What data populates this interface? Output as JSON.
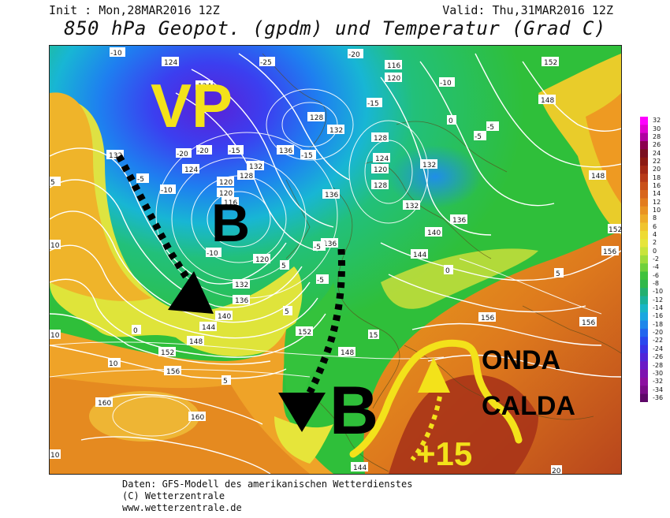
{
  "header": {
    "init": "Init : Mon,28MAR2016 12Z",
    "valid": "Valid: Thu,31MAR2016 12Z",
    "title": "850 hPa Geopot. (gpdm) und Temperatur (Grad C)"
  },
  "annotations": {
    "vortex": "VP",
    "low1": "B",
    "low2": "B",
    "warm_wave_line1": "ONDA",
    "warm_wave_line2": "CALDA",
    "temp_value": "+15"
  },
  "colors": {
    "annotation_yellow": "#f3e21a",
    "annotation_black": "#000000"
  },
  "colorbar": {
    "labels": [
      "32",
      "30",
      "28",
      "26",
      "24",
      "22",
      "20",
      "18",
      "16",
      "14",
      "12",
      "10",
      "8",
      "6",
      "4",
      "2",
      "0",
      "-2",
      "-4",
      "-6",
      "-8",
      "-10",
      "-12",
      "-14",
      "-16",
      "-18",
      "-20",
      "-22",
      "-24",
      "-26",
      "-28",
      "-30",
      "-32",
      "-34",
      "-36"
    ]
  },
  "map_labels": {
    "geopotential": [
      "124",
      "124",
      "116",
      "120",
      "132",
      "128",
      "132",
      "136",
      "120",
      "128",
      "132",
      "124",
      "120",
      "136",
      "132",
      "140",
      "136",
      "144",
      "128",
      "120",
      "128",
      "124",
      "120",
      "116",
      "132",
      "136",
      "140",
      "144",
      "148",
      "152",
      "156",
      "160",
      "160",
      "148",
      "152",
      "156",
      "156",
      "148",
      "152",
      "144",
      "148",
      "152",
      "156",
      "132",
      "136"
    ],
    "temperature": [
      "-10",
      "-25",
      "-20",
      "-15",
      "-10",
      "-5",
      "0",
      "5",
      "10",
      "-5",
      "-10",
      "-15",
      "-20",
      "-5",
      "5",
      "10",
      "-5",
      "0",
      "5",
      "10",
      "15",
      "20",
      "5",
      "0",
      "-5",
      "-10",
      "-15",
      "-20",
      "5",
      "10"
    ]
  },
  "footer": {
    "line1": "Daten: GFS-Modell des amerikanischen Wetterdienstes",
    "line2": "(C) Wetterzentrale",
    "line3": "www.wetterzentrale.de"
  }
}
